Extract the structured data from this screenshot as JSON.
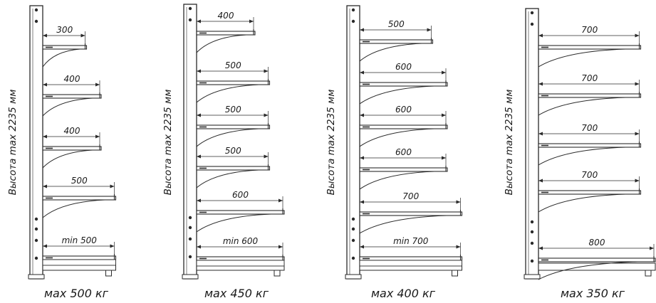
{
  "units": [
    {
      "height_label": "Высота max 2235 мм",
      "load_label": "мах 500 кг",
      "shelves": [
        {
          "depth_label": "300",
          "depth": 300
        },
        {
          "depth_label": "400",
          "depth": 400
        },
        {
          "depth_label": "400",
          "depth": 400
        },
        {
          "depth_label": "500",
          "depth": 500
        },
        {
          "depth_label": "min 500",
          "depth": 500
        }
      ]
    },
    {
      "height_label": "Высота max 2235 мм",
      "load_label": "мах 450 кг",
      "shelves": [
        {
          "depth_label": "400",
          "depth": 400
        },
        {
          "depth_label": "500",
          "depth": 500
        },
        {
          "depth_label": "500",
          "depth": 500
        },
        {
          "depth_label": "500",
          "depth": 500
        },
        {
          "depth_label": "600",
          "depth": 600
        },
        {
          "depth_label": "min 600",
          "depth": 600
        }
      ]
    },
    {
      "height_label": "Высота max 2235 мм",
      "load_label": "мах 400 кг",
      "shelves": [
        {
          "depth_label": "500",
          "depth": 500
        },
        {
          "depth_label": "600",
          "depth": 600
        },
        {
          "depth_label": "600",
          "depth": 600
        },
        {
          "depth_label": "600",
          "depth": 600
        },
        {
          "depth_label": "700",
          "depth": 700
        },
        {
          "depth_label": "min 700",
          "depth": 700
        }
      ]
    },
    {
      "height_label": "Высота max 2235 мм",
      "load_label": "мах 350 кг",
      "shelves": [
        {
          "depth_label": "700",
          "depth": 700
        },
        {
          "depth_label": "700",
          "depth": 700
        },
        {
          "depth_label": "700",
          "depth": 700
        },
        {
          "depth_label": "700",
          "depth": 700
        },
        {
          "depth_label": "800",
          "depth": 800
        }
      ]
    }
  ],
  "colors": {
    "line": "#2a2a2a",
    "label": "#1a1a1a"
  }
}
